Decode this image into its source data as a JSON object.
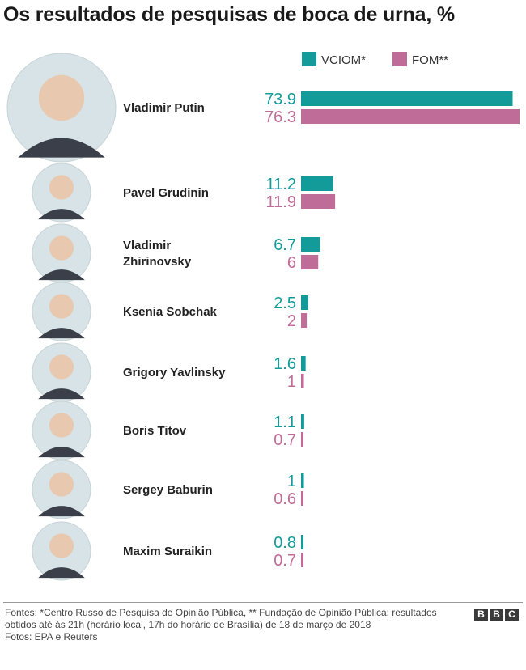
{
  "header": {
    "title": "Os resultados de pesquisas de boca de urna, %"
  },
  "chart_data": {
    "type": "bar",
    "orientation": "horizontal",
    "title": "Os resultados de pesquisas de boca de urna, %",
    "xlabel": "",
    "ylabel": "",
    "xlim": [
      0,
      76.3
    ],
    "grid": false,
    "legend_position": "top",
    "categories": [
      "Vladimir Putin",
      "Pavel Grudinin",
      "Vladimir Zhirinovsky",
      "Ksenia Sobchak",
      "Grigory Yavlinsky",
      "Boris Titov",
      "Sergey Baburin",
      "Maxim Suraikin"
    ],
    "value_labels": {
      "VCIOM*": [
        "73.9",
        "11.2",
        "6.7",
        "2.5",
        "1.6",
        "1.1",
        "1",
        "0.8"
      ],
      "FOM**": [
        "76.3",
        "11.9",
        "6",
        "2",
        "1",
        "0.7",
        "0.6",
        "0.7"
      ]
    },
    "series": [
      {
        "name": "VCIOM*",
        "color": "#139b99",
        "values": [
          73.9,
          11.2,
          6.7,
          2.5,
          1.6,
          1.1,
          1,
          0.8
        ]
      },
      {
        "name": "FOM**",
        "color": "#c06c98",
        "values": [
          76.3,
          11.9,
          6,
          2,
          1,
          0.7,
          0.6,
          0.7
        ]
      }
    ]
  },
  "footer": {
    "sources": "Fontes: *Centro Russo de Pesquisa de Opinião Pública, ** Fundação de Opinião Pública; resultados obtidos até às 21h (horário local, 17h do horário de Brasília) de 18 de março de 2018",
    "photos": "Fotos: EPA e Reuters",
    "logo_letters": [
      "B",
      "B",
      "C"
    ]
  }
}
